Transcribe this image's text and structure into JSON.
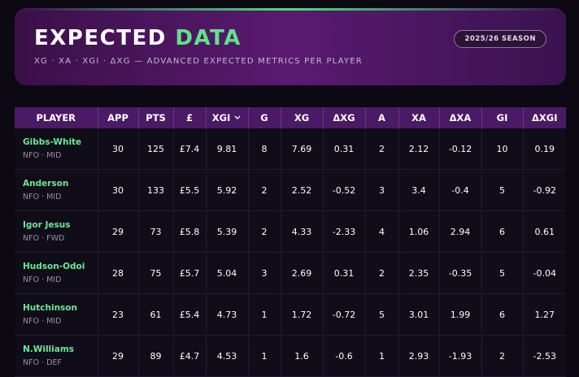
{
  "header": {
    "title_part1": "EXPECTED",
    "title_part2": "DATA",
    "subtitle": "XG · XA · XGI · ΔXG — ADVANCED EXPECTED METRICS PER PLAYER",
    "badge": "2025/26 SEASON"
  },
  "table": {
    "columns": [
      "PLAYER",
      "APP",
      "PTS",
      "£",
      "XGI",
      "G",
      "XG",
      "ΔXG",
      "A",
      "XA",
      "ΔXA",
      "GI",
      "ΔXGI"
    ],
    "rows": [
      {
        "player": "Gibbs-White",
        "team": "NFO · MID",
        "stats": [
          "30",
          "125",
          "£7.4",
          "9.81",
          "8",
          "7.69",
          "0.31",
          "2",
          "2.12",
          "-0.12",
          "10",
          "0.19"
        ]
      },
      {
        "player": "Anderson",
        "team": "NFO · MID",
        "stats": [
          "30",
          "133",
          "£5.5",
          "5.92",
          "2",
          "2.52",
          "-0.52",
          "3",
          "3.4",
          "-0.4",
          "5",
          "-0.92"
        ]
      },
      {
        "player": "Igor Jesus",
        "team": "NFO · FWD",
        "stats": [
          "29",
          "73",
          "£5.8",
          "5.39",
          "2",
          "4.33",
          "-2.33",
          "4",
          "1.06",
          "2.94",
          "6",
          "0.61"
        ]
      },
      {
        "player": "Hudson-Odoi",
        "team": "NFO · MID",
        "stats": [
          "28",
          "75",
          "£5.7",
          "5.04",
          "3",
          "2.69",
          "0.31",
          "2",
          "2.35",
          "-0.35",
          "5",
          "-0.04"
        ]
      },
      {
        "player": "Hutchinson",
        "team": "NFO · MID",
        "stats": [
          "23",
          "61",
          "£5.4",
          "4.73",
          "1",
          "1.72",
          "-0.72",
          "5",
          "3.01",
          "1.99",
          "6",
          "1.27"
        ]
      },
      {
        "player": "N.Williams",
        "team": "NFO · DEF",
        "stats": [
          "29",
          "89",
          "£4.7",
          "4.53",
          "1",
          "1.6",
          "-0.6",
          "1",
          "2.93",
          "-1.93",
          "2",
          "-2.53"
        ]
      }
    ]
  }
}
